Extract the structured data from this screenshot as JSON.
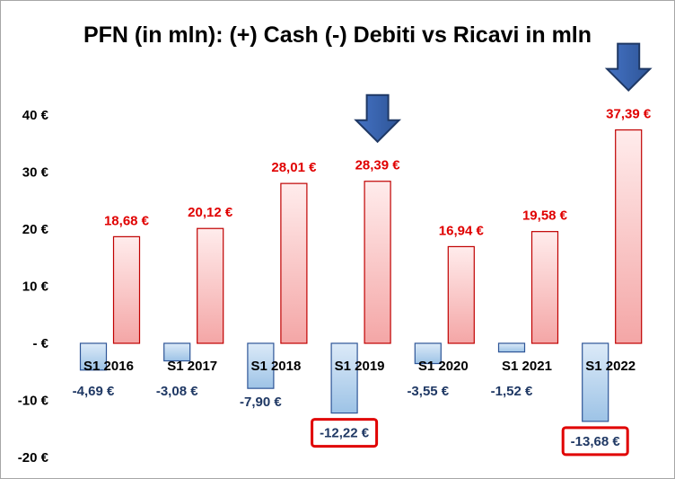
{
  "chart_data": {
    "type": "bar",
    "title": "PFN (in mln): (+) Cash (-) Debiti vs Ricavi in mln",
    "categories": [
      "S1 2016",
      "S1 2017",
      "S1 2018",
      "S1 2019",
      "S1 2020",
      "S1 2021",
      "S1 2022"
    ],
    "series": [
      {
        "values": [
          -4.69,
          -3.08,
          -7.9,
          -12.22,
          -3.55,
          -1.52,
          -13.68
        ],
        "labels": [
          "-4,69 €",
          "-3,08 €",
          "-7,90 €",
          "-12,22 €",
          "-3,55 €",
          "-1,52 €",
          "-13,68 €"
        ],
        "color": "#9dc3e6",
        "label_color": "#1f3864"
      },
      {
        "values": [
          18.68,
          20.12,
          28.01,
          28.39,
          16.94,
          19.58,
          37.39
        ],
        "labels": [
          "18,68 €",
          "20,12 €",
          "28,01 €",
          "28,39 €",
          "16,94 €",
          "19,58 €",
          "37,39 €"
        ],
        "color": "#f4a6a6",
        "label_color": "#e00000"
      }
    ],
    "yticks": [
      "-20 €",
      "-10 €",
      "- €",
      "10 €",
      "20 €",
      "30 €",
      "40 €"
    ],
    "ylim": [
      -20,
      40
    ],
    "grid": false,
    "legend": "none",
    "highlighted_labels": [
      "S1 2019",
      "S1 2022"
    ],
    "highlight_box_color": "#e00000",
    "arrow_markers": [
      "S1 2019",
      "S1 2022"
    ],
    "arrow_color": "#2e5597"
  }
}
